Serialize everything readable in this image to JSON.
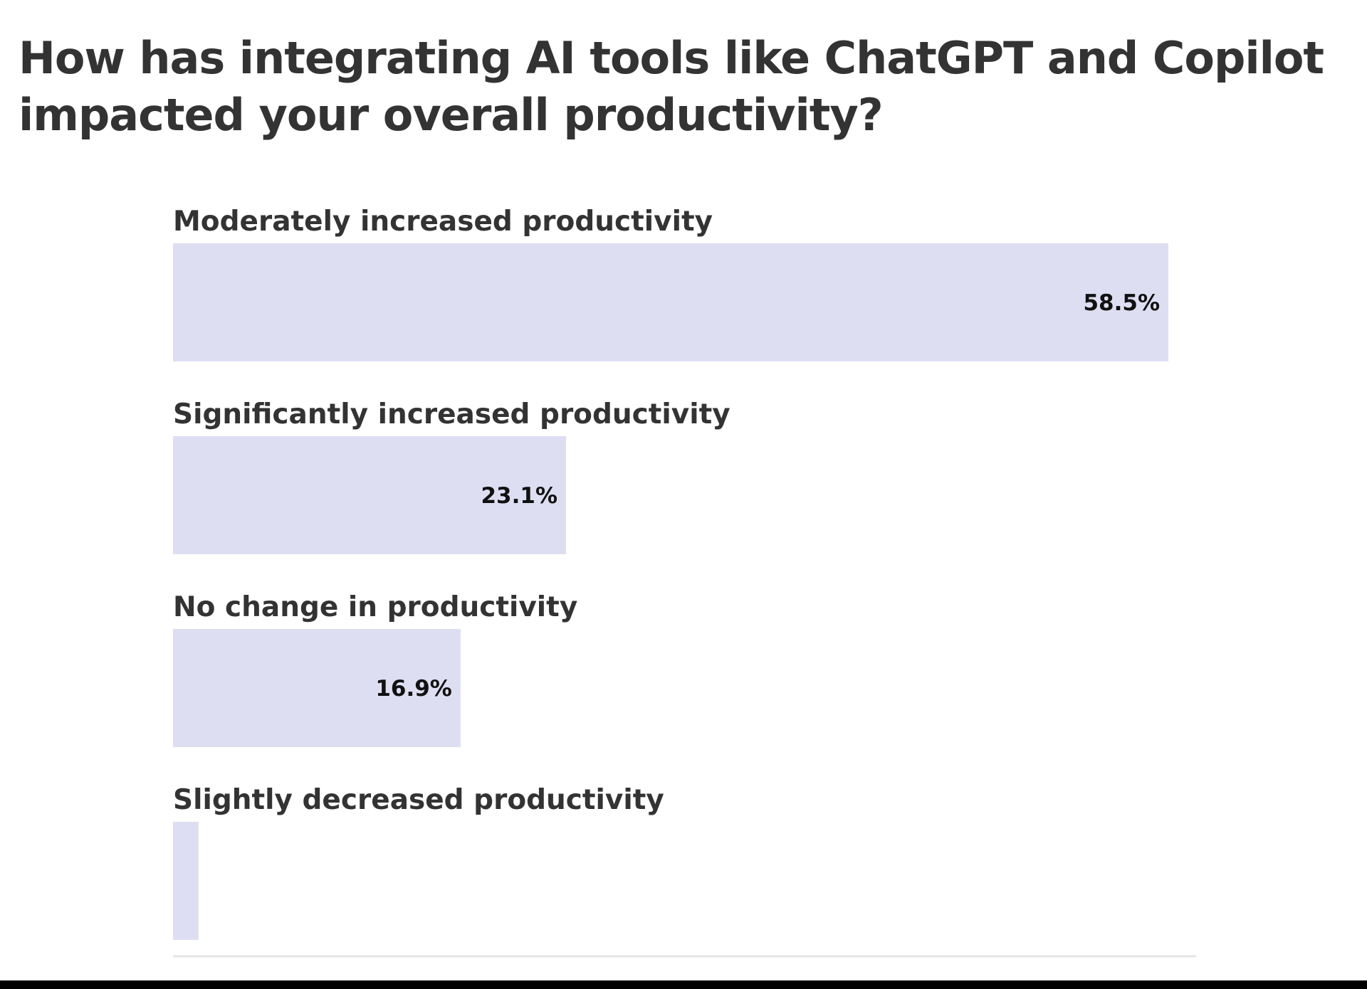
{
  "chart_data": {
    "type": "bar",
    "orientation": "horizontal",
    "title": "How has integrating AI tools like ChatGPT and Copilot impacted your overall productivity?",
    "categories": [
      "Moderately increased productivity",
      "Significantly increased productivity",
      "No change in productivity",
      "Slightly decreased productivity"
    ],
    "values": [
      58.5,
      23.1,
      16.9,
      1.5
    ],
    "value_labels": [
      "58.5%",
      "23.1%",
      "16.9%",
      ""
    ],
    "unit": "%",
    "xlim": [
      0,
      60
    ],
    "bar_color": "#dedef3",
    "grid": false,
    "legend": "none"
  }
}
